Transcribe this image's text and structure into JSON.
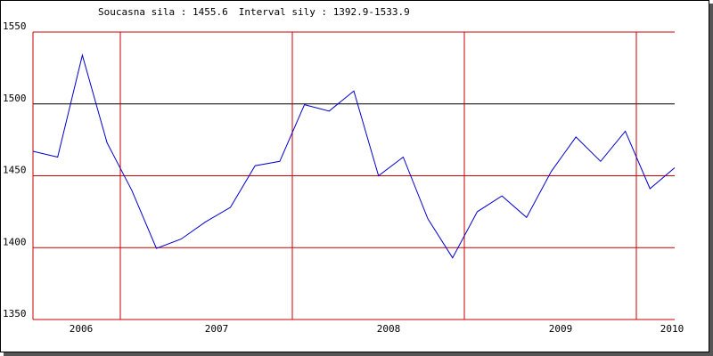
{
  "header": {
    "current_label": "Soucasna sila : ",
    "current_value": "1455.6",
    "interval_label": "Interval sily : ",
    "interval_value": "1392.9-1533.9"
  },
  "chart_data": {
    "type": "line",
    "title": "",
    "xlabel": "",
    "ylabel": "",
    "ylim": [
      1350,
      1550
    ],
    "yticks": [
      1550,
      1500,
      1450,
      1400,
      1350
    ],
    "xtick_labels": [
      "2006",
      "2007",
      "2008",
      "2009",
      "2010"
    ],
    "grid": true,
    "colors": {
      "line": "#0000cc",
      "grid": "#cc0000",
      "reference": "#000000"
    },
    "reference_line": 1500,
    "series": [
      {
        "name": "",
        "values": [
          1467,
          1463,
          1533.9,
          1473,
          1440,
          1399.5,
          1406,
          1418,
          1428,
          1457,
          1460,
          1499.5,
          1495,
          1509,
          1450,
          1463,
          1420,
          1392.9,
          1425,
          1436,
          1421,
          1453,
          1477,
          1460,
          1481,
          1441,
          1455.6
        ]
      }
    ]
  }
}
